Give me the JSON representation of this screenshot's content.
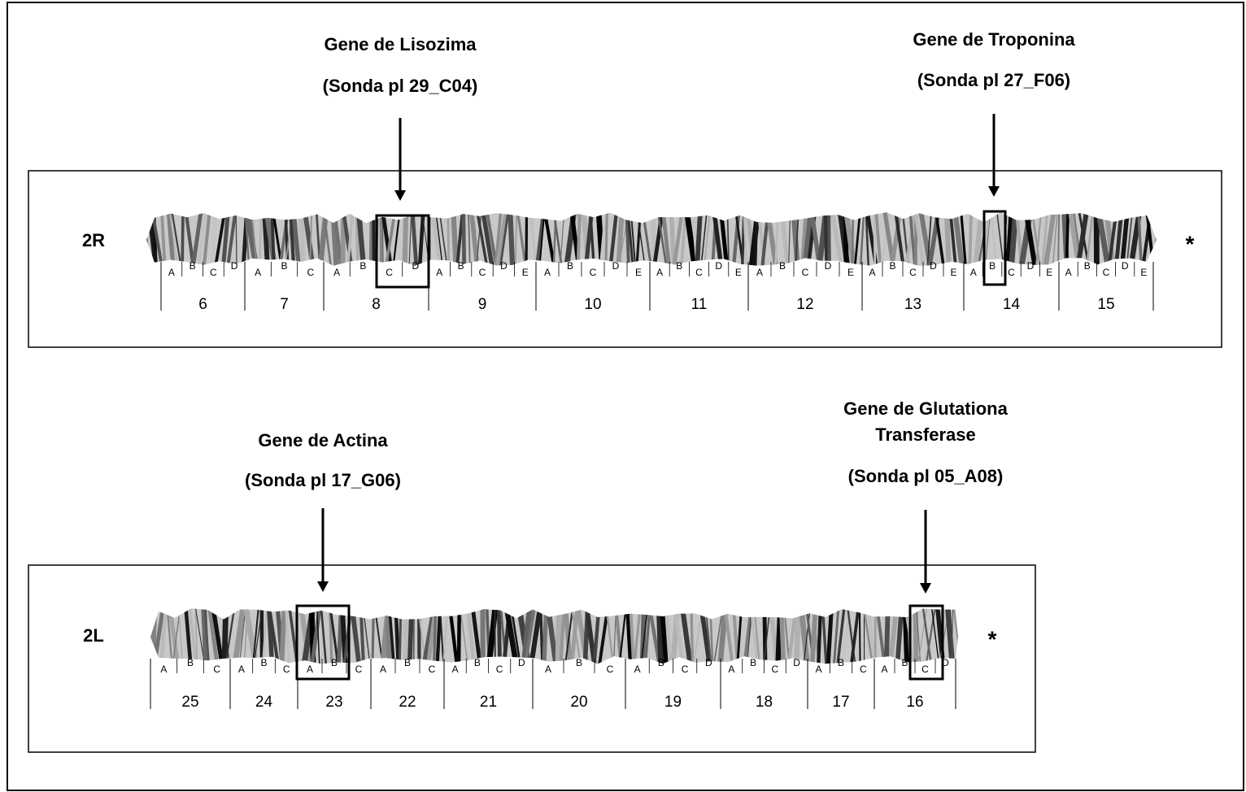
{
  "panels": [
    {
      "label": "2R",
      "asterisk": "*",
      "sections": [
        {
          "number": 6,
          "bands": [
            "A",
            "B",
            "C",
            "D"
          ]
        },
        {
          "number": 7,
          "bands": [
            "A",
            "B",
            "C"
          ]
        },
        {
          "number": 8,
          "bands": [
            "A",
            "B",
            "C",
            "D"
          ]
        },
        {
          "number": 9,
          "bands": [
            "A",
            "B",
            "C",
            "D",
            "E"
          ]
        },
        {
          "number": 10,
          "bands": [
            "A",
            "B",
            "C",
            "D",
            "E"
          ]
        },
        {
          "number": 11,
          "bands": [
            "A",
            "B",
            "C",
            "D",
            "E"
          ]
        },
        {
          "number": 12,
          "bands": [
            "A",
            "B",
            "C",
            "D",
            "E"
          ]
        },
        {
          "number": 13,
          "bands": [
            "A",
            "B",
            "C",
            "D",
            "E"
          ]
        },
        {
          "number": 14,
          "bands": [
            "A",
            "B",
            "C",
            "D",
            "E"
          ]
        },
        {
          "number": 15,
          "bands": [
            "A",
            "B",
            "C",
            "D",
            "E"
          ]
        }
      ]
    },
    {
      "label": "2L",
      "asterisk": "*",
      "sections": [
        {
          "number": 25,
          "bands": [
            "A",
            "B",
            "C"
          ]
        },
        {
          "number": 24,
          "bands": [
            "A",
            "B",
            "C"
          ]
        },
        {
          "number": 23,
          "bands": [
            "A",
            "B",
            "C"
          ]
        },
        {
          "number": 22,
          "bands": [
            "A",
            "B",
            "C"
          ]
        },
        {
          "number": 21,
          "bands": [
            "A",
            "B",
            "C",
            "D"
          ]
        },
        {
          "number": 20,
          "bands": [
            "A",
            "B",
            "C"
          ]
        },
        {
          "number": 19,
          "bands": [
            "A",
            "B",
            "C",
            "D"
          ]
        },
        {
          "number": 18,
          "bands": [
            "A",
            "B",
            "C",
            "D"
          ]
        },
        {
          "number": 17,
          "bands": [
            "A",
            "B",
            "C"
          ]
        },
        {
          "number": 16,
          "bands": [
            "A",
            "B",
            "C",
            "D"
          ]
        }
      ]
    }
  ],
  "annotations": [
    {
      "lines": [
        "Gene de Lisozima",
        "(Sonda pl 29_C04)"
      ]
    },
    {
      "lines": [
        "Gene de Troponina",
        "(Sonda pl 27_F06)"
      ]
    },
    {
      "lines": [
        "Gene de Actina",
        "(Sonda pl 17_G06)"
      ]
    },
    {
      "lines": [
        "Gene de Glutationa",
        "Transferase",
        "(Sonda pl 05_A08)"
      ]
    }
  ]
}
